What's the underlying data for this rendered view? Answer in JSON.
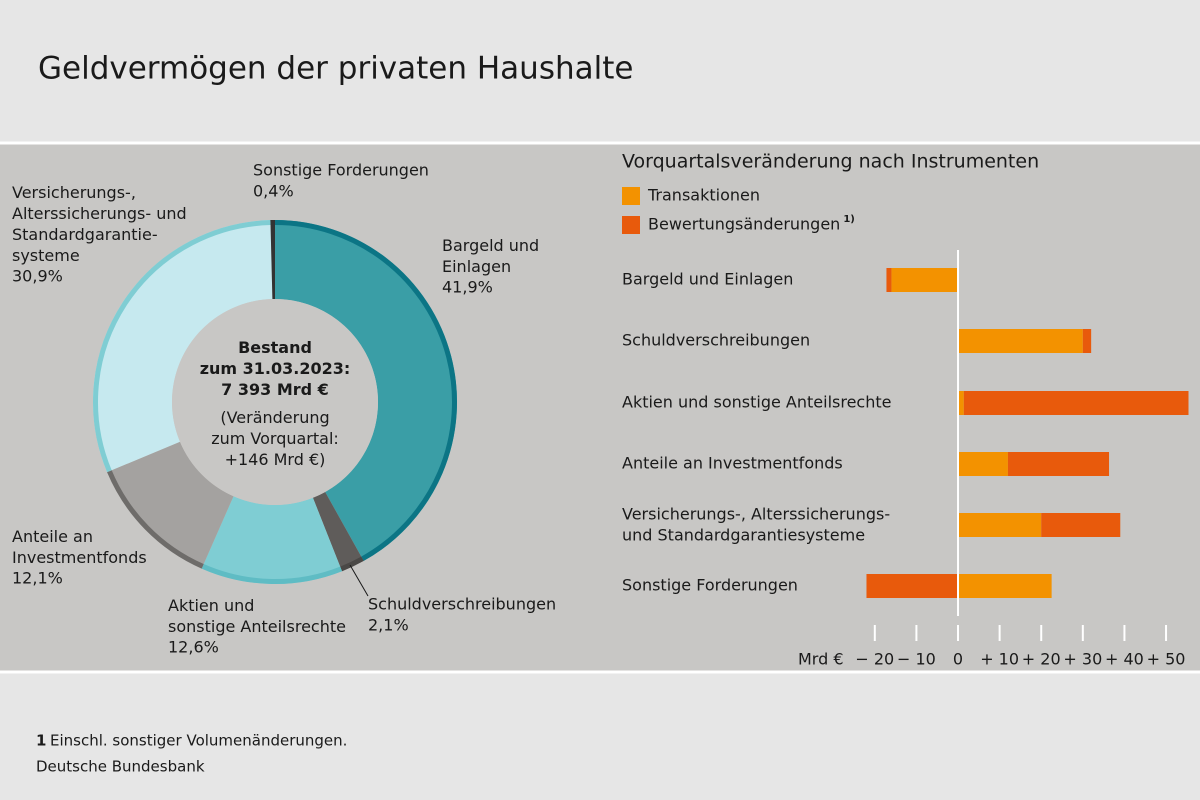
{
  "title": "Geldvermögen der privaten Haushalte",
  "footnote": {
    "marker": "1",
    "text": "Einschl. sonstiger Volumenänderungen."
  },
  "source": "Deutsche Bundesbank",
  "chart_data": [
    {
      "type": "pie",
      "categories": [
        "Bargeld und\nEinlagen",
        "Schuldverschreibungen",
        "Aktien und\nsonstige Anteilsrechte",
        "Anteile an\nInvestmentfonds",
        "Versicherungs-,\nAlterssicherungs- und\nStandardgarantie-\nsysteme",
        "Sonstige Forderungen"
      ],
      "values": [
        41.9,
        2.1,
        12.6,
        12.1,
        30.9,
        0.4
      ],
      "value_labels": [
        "41,9%",
        "2,1%",
        "12,6%",
        "12,1%",
        "30,9%",
        "0,4%"
      ],
      "colors": [
        "#3a9ea6",
        "#5f5c5a",
        "#7fcdd3",
        "#a4a2a0",
        "#c6e9ef",
        "#333333"
      ],
      "edge_colors": [
        "#0c7585",
        "#4a4846",
        "#5fbcc4",
        "#6e6c6a",
        "#7fcdd3",
        "#333333"
      ],
      "center_label": [
        "Bestand\nzum 31.03.2023:\n7 393 Mrd €",
        "(Veränderung\nzum Vorquartal:\n+146 Mrd €)"
      ]
    },
    {
      "type": "bar",
      "orientation": "horizontal",
      "stacked": true,
      "title": "Vorquartalsveränderung nach Instrumenten",
      "categories": [
        "Bargeld und Einlagen",
        "Schuldverschreibungen",
        "Aktien und sonstige Anteilsrechte",
        "Anteile an Investmentfonds",
        "Versicherungs-, Alterssicherungs-\nund Standardgarantiesysteme",
        "Sonstige Forderungen"
      ],
      "series": [
        {
          "name": "Transaktionen",
          "color": "#f39200",
          "values": [
            -16,
            30,
            1.4,
            12,
            20,
            22.5
          ]
        },
        {
          "name": "Bewertungsänderungen",
          "name_note": "1)",
          "color": "#e85a0c",
          "values": [
            -1.2,
            2,
            54,
            24.3,
            19,
            -22
          ]
        }
      ],
      "x_label": "Mrd €",
      "xlim": [
        -25,
        56
      ],
      "xticks": [
        {
          "value": -20,
          "label": "− 20"
        },
        {
          "value": -10,
          "label": "− 10"
        },
        0,
        {
          "value": 10,
          "label": "+ 10"
        },
        {
          "value": 20,
          "label": "+ 20"
        },
        {
          "value": 30,
          "label": "+ 30"
        },
        {
          "value": 40,
          "label": "+ 40"
        },
        {
          "value": 50,
          "label": "+ 50"
        }
      ]
    }
  ]
}
